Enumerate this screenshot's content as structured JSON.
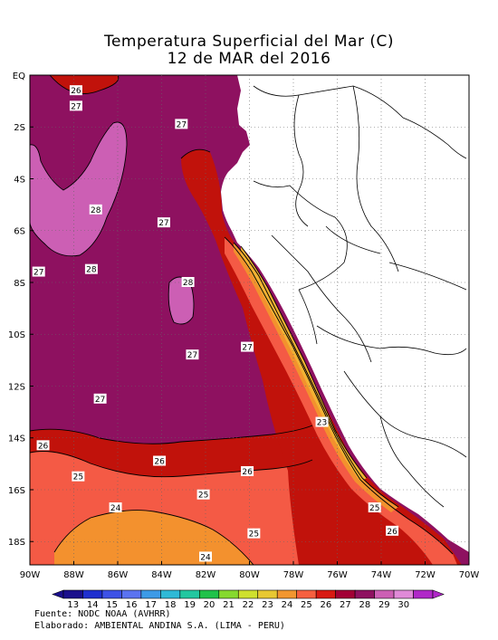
{
  "title": {
    "line1": "Temperatura Superficial del Mar (C)",
    "line2": "12 de MAR del 2016"
  },
  "axes": {
    "y_ticks": [
      "EQ",
      "2S",
      "4S",
      "6S",
      "8S",
      "10S",
      "12S",
      "14S",
      "16S",
      "18S"
    ],
    "x_ticks": [
      "90W",
      "88W",
      "86W",
      "84W",
      "82W",
      "80W",
      "78W",
      "76W",
      "74W",
      "72W",
      "70W"
    ],
    "lon_range": [
      -90,
      -70
    ],
    "lat_range": [
      -18.9,
      0
    ]
  },
  "contour_labels": [
    {
      "text": "26",
      "lon": -87.9,
      "lat": -0.6
    },
    {
      "text": "27",
      "lon": -87.9,
      "lat": -1.2
    },
    {
      "text": "27",
      "lon": -83.1,
      "lat": -1.9
    },
    {
      "text": "28",
      "lon": -87.0,
      "lat": -5.2
    },
    {
      "text": "27",
      "lon": -83.9,
      "lat": -5.7
    },
    {
      "text": "27",
      "lon": -89.6,
      "lat": -7.6
    },
    {
      "text": "28",
      "lon": -87.2,
      "lat": -7.5
    },
    {
      "text": "28",
      "lon": -82.8,
      "lat": -8.0
    },
    {
      "text": "27",
      "lon": -80.1,
      "lat": -10.5
    },
    {
      "text": "27",
      "lon": -82.6,
      "lat": -10.8
    },
    {
      "text": "27",
      "lon": -86.8,
      "lat": -12.5
    },
    {
      "text": "23",
      "lon": -76.7,
      "lat": -13.4
    },
    {
      "text": "26",
      "lon": -89.4,
      "lat": -14.3
    },
    {
      "text": "26",
      "lon": -84.1,
      "lat": -14.9
    },
    {
      "text": "25",
      "lon": -87.8,
      "lat": -15.5
    },
    {
      "text": "26",
      "lon": -80.1,
      "lat": -15.3
    },
    {
      "text": "25",
      "lon": -82.1,
      "lat": -16.2
    },
    {
      "text": "24",
      "lon": -86.1,
      "lat": -16.7
    },
    {
      "text": "25",
      "lon": -74.3,
      "lat": -16.7
    },
    {
      "text": "26",
      "lon": -73.5,
      "lat": -17.6
    },
    {
      "text": "25",
      "lon": -79.8,
      "lat": -17.7
    },
    {
      "text": "24",
      "lon": -82.0,
      "lat": -18.6
    }
  ],
  "colorbar": {
    "labels": [
      "13",
      "14",
      "15",
      "16",
      "17",
      "18",
      "19",
      "20",
      "21",
      "22",
      "23",
      "24",
      "25",
      "26",
      "27",
      "28",
      "29",
      "30"
    ],
    "colors": [
      "#1a0f8c",
      "#1f2fcf",
      "#3e52e6",
      "#5b73f0",
      "#3d9ae6",
      "#2fb9d6",
      "#22c7a0",
      "#20c24a",
      "#86d92e",
      "#cfe02e",
      "#e8c832",
      "#f2962f",
      "#f6603f",
      "#d81a12",
      "#a20035",
      "#8e1160",
      "#cc5fb4",
      "#e08ad8",
      "#b028c8"
    ]
  },
  "fill_colors": {
    "t23": "#f2b233",
    "t24": "#f3912e",
    "t25": "#f45a45",
    "t26": "#c1120b",
    "t27": "#8e1160",
    "t28": "#cc5fb4",
    "land": "#ffffff"
  },
  "footer": {
    "line1": "Fuente: NODC NOAA (AVHRR)",
    "line2": "Elaborado: AMBIENTAL ANDINA S.A. (LIMA - PERU)"
  }
}
